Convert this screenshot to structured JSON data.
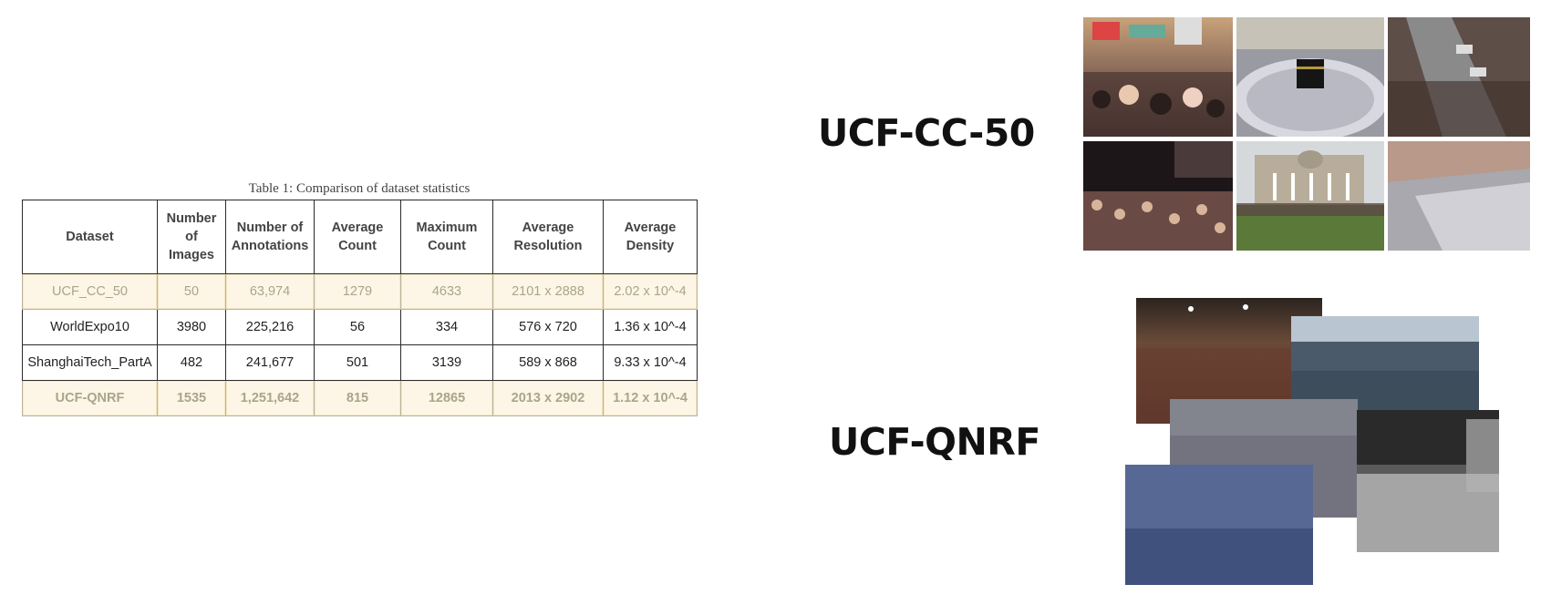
{
  "table": {
    "caption": "Table 1: Comparison of dataset statistics",
    "headers": [
      [
        "Dataset"
      ],
      [
        "Number",
        "of",
        "Images"
      ],
      [
        "Number of",
        "Annotations"
      ],
      [
        "Average",
        "Count"
      ],
      [
        "Maximum",
        "Count"
      ],
      [
        "Average",
        "Resolution"
      ],
      [
        "Average",
        "Density"
      ]
    ],
    "rows": [
      [
        "UCF_CC_50",
        "50",
        "63,974",
        "1279",
        "4633",
        "2101 x 2888",
        "2.02 x 10^-4"
      ],
      [
        "WorldExpo10",
        "3980",
        "225,216",
        "56",
        "334",
        "576 x 720",
        "1.36 x 10^-4"
      ],
      [
        "ShanghaiTech_PartA",
        "482",
        "241,677",
        "501",
        "3139",
        "589 x 868",
        "9.33 x 10^-4"
      ],
      [
        "UCF-QNRF",
        "1535",
        "1,251,642",
        "815",
        "12865",
        "2013 x 2902",
        "1.12 x 10^-4"
      ]
    ],
    "highlighted_rows": [
      0,
      3
    ],
    "highlight_color": "#fdf6e6"
  },
  "labels": {
    "ucf_cc_50": "UCF-CC-50",
    "ucf_qnrf": "UCF-QNRF"
  },
  "images": {
    "ucf_cc_50_grid": [
      "street-crowd-photo",
      "kaaba-crowd-photo",
      "aerial-street-crowd-photo",
      "concert-crowd-photo",
      "trafalgar-square-crowd-photo",
      "plaza-crowd-photo"
    ],
    "ucf_qnrf_collage": [
      "stadium-crowd-photo",
      "arena-crowd-photo",
      "dense-crowd-photo",
      "night-street-crowd-photo",
      "blue-crowd-photo"
    ]
  }
}
